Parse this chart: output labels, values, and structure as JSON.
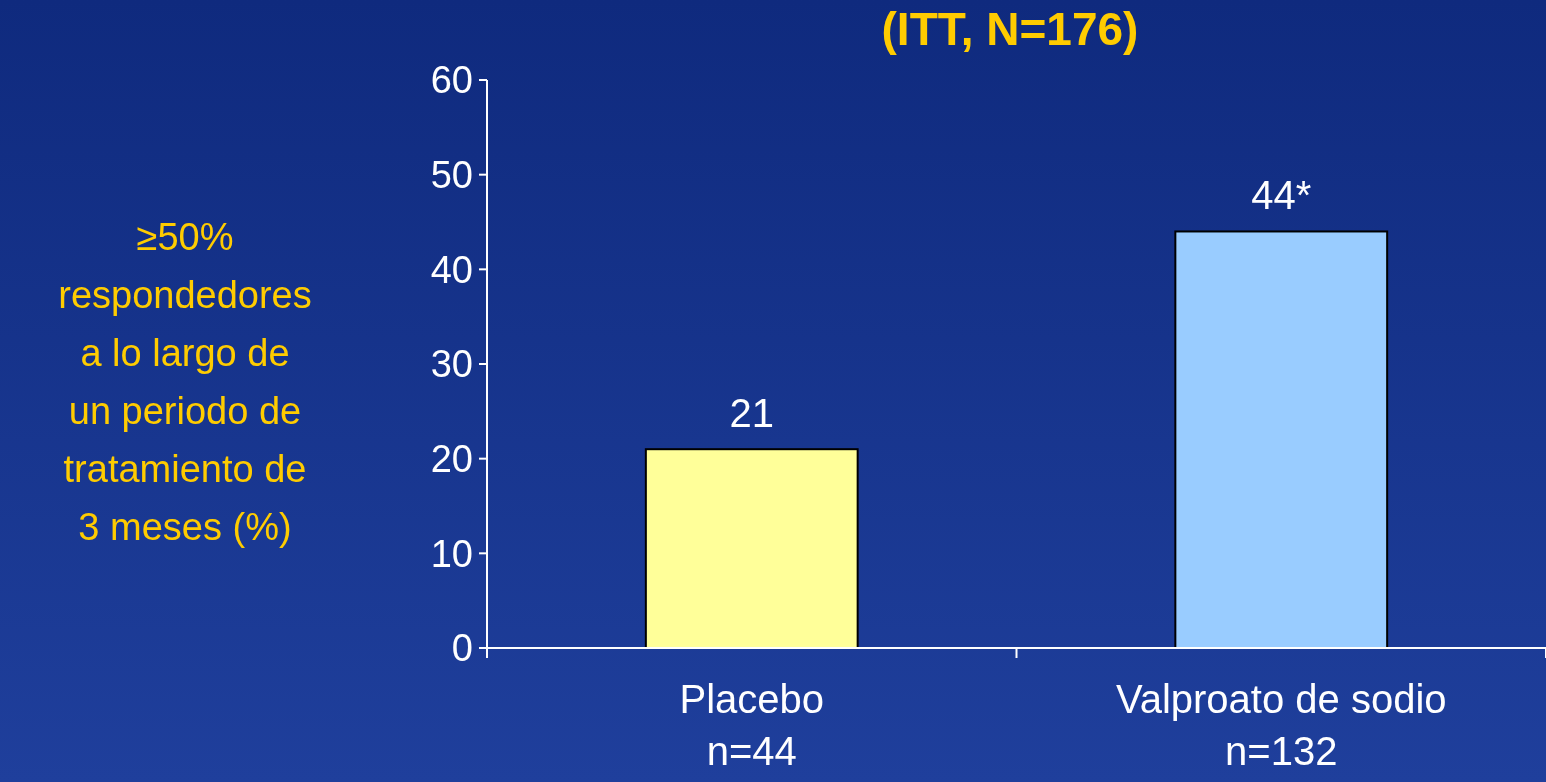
{
  "chart_data": {
    "type": "bar",
    "title": "(ITT, N=176)",
    "ylabel": "≥50%\nrespondedores\na lo largo de\nun periodo de\ntratamiento de\n3 meses (%)",
    "categories": [
      "Placebo\nn=44",
      "Valproato de sodio\nn=132"
    ],
    "values": [
      21,
      44
    ],
    "colors": [
      "#ffff99",
      "#99ccff"
    ],
    "value_labels": [
      "21",
      "44*"
    ],
    "ylim": [
      0,
      60
    ],
    "yticks": [
      0,
      10,
      20,
      30,
      40,
      50,
      60
    ],
    "grid": false
  }
}
